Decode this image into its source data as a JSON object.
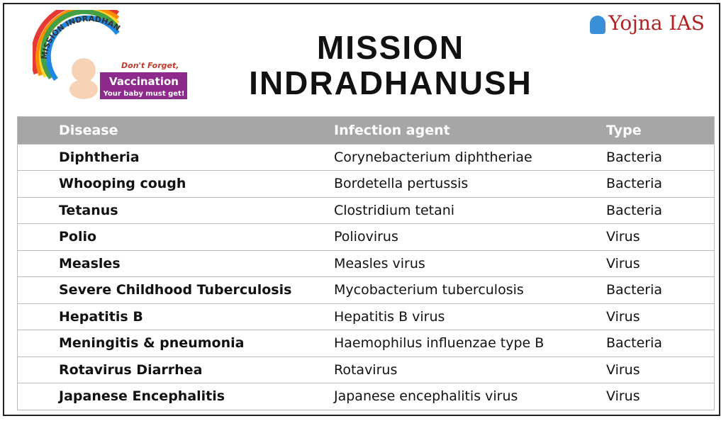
{
  "logo": {
    "arc_text": "MISSION INDRADHANUSH",
    "tagline": "Don't Forget,",
    "badge": "Vaccination",
    "subline": "Your baby must get!"
  },
  "brand": "Yojna IAS",
  "title": [
    "MISSION",
    "INDRADHANUSH"
  ],
  "table": {
    "columns": [
      "Disease",
      "Infection agent",
      "Type"
    ],
    "rows": [
      [
        "Diphtheria",
        "Corynebacterium diphtheriae",
        "Bacteria"
      ],
      [
        "Whooping cough",
        "Bordetella pertussis",
        "Bacteria"
      ],
      [
        "Tetanus",
        "Clostridium tetani",
        "Bacteria"
      ],
      [
        "Polio",
        "Poliovirus",
        "Virus"
      ],
      [
        "Measles",
        "Measles virus",
        "Virus"
      ],
      [
        "Severe Childhood Tuberculosis",
        "Mycobacterium tuberculosis",
        "Bacteria"
      ],
      [
        "Hepatitis B",
        "Hepatitis B virus",
        "Virus"
      ],
      [
        "Meningitis & pneumonia",
        "Haemophilus influenzae type B",
        "Bacteria"
      ],
      [
        "Rotavirus Diarrhea",
        "Rotavirus",
        "Virus"
      ],
      [
        "Japanese Encephalitis",
        "Japanese encephalitis virus",
        "Virus"
      ]
    ]
  }
}
